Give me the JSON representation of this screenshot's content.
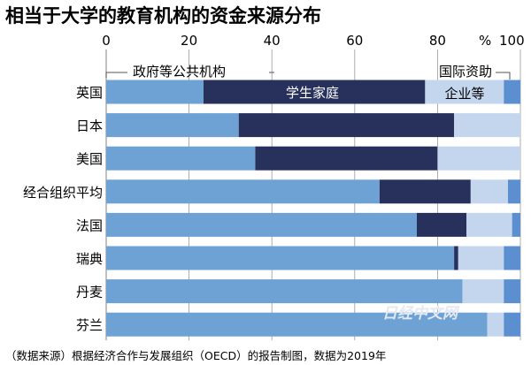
{
  "chart_data": {
    "type": "bar",
    "orientation": "horizontal",
    "stacked": true,
    "title": "相当于大学的教育机构的资金来源分布",
    "xlim": [
      0,
      100
    ],
    "x_ticks": [
      0,
      20,
      40,
      60,
      80
    ],
    "x_tick_last_label": "100",
    "x_unit": "%",
    "grid": true,
    "categories": [
      "英国",
      "日本",
      "美国",
      "经合组织平均",
      "法国",
      "瑞典",
      "丹麦",
      "芬兰"
    ],
    "series": [
      {
        "name": "政府等公共机构",
        "color": "#6fa2d4",
        "values": [
          23.5,
          32,
          36,
          66,
          75,
          84,
          86,
          92
        ]
      },
      {
        "name": "学生家庭",
        "color": "#27315c",
        "values": [
          53.5,
          52,
          44,
          22,
          12,
          1,
          0,
          0
        ]
      },
      {
        "name": "企业等",
        "color": "#c4d6ee",
        "values": [
          19,
          16,
          20,
          9,
          11,
          11,
          10,
          4
        ]
      },
      {
        "name": "国际资助",
        "color": "#5b8fd0",
        "values": [
          4,
          0,
          0,
          3,
          2,
          4,
          4,
          4
        ]
      }
    ],
    "note": "（数据来源）根据经济合作与发展组织（OECD）的报告制图，数据为2019年"
  },
  "watermark": "日经中文网"
}
